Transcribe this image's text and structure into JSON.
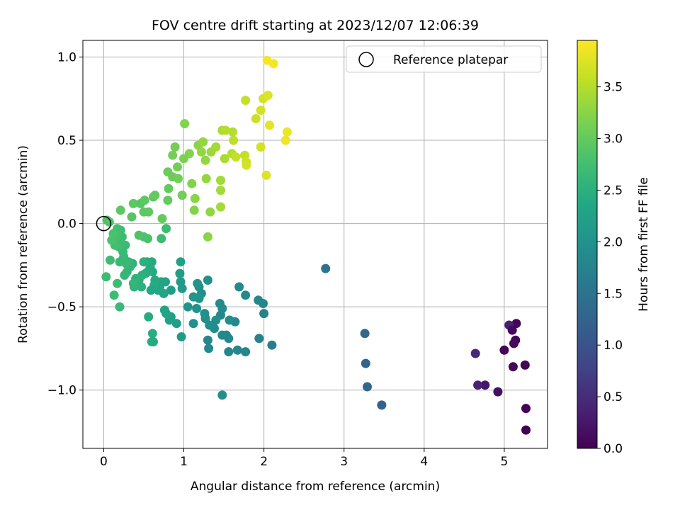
{
  "chart_data": {
    "type": "scatter",
    "title": "FOV centre drift starting at 2023/12/07 12:06:39",
    "xlabel": "Angular distance from reference (arcmin)",
    "ylabel": "Rotation from reference (arcmin)",
    "xlim": [
      -0.26,
      5.54
    ],
    "ylim": [
      -1.35,
      1.1
    ],
    "x_ticks": [
      0,
      1,
      2,
      3,
      4,
      5
    ],
    "y_ticks": [
      -1.0,
      -0.5,
      0.0,
      0.5,
      1.0
    ],
    "x_tick_labels": [
      "0",
      "1",
      "2",
      "3",
      "4",
      "5"
    ],
    "y_tick_labels": [
      "−1.0",
      "−0.5",
      "0.0",
      "0.5",
      "1.0"
    ],
    "grid": true,
    "legend": {
      "position": "top-right",
      "entries": [
        "Reference platepar"
      ]
    },
    "reference_point": {
      "x": 0.0,
      "y": 0.0
    },
    "colorbar": {
      "label": "Hours from first FF file",
      "colormap": "viridis",
      "range": [
        0.0,
        3.95
      ],
      "ticks": [
        0.0,
        0.5,
        1.0,
        1.5,
        2.0,
        2.5,
        3.0,
        3.5
      ],
      "tick_labels": [
        "0.0",
        "0.5",
        "1.0",
        "1.5",
        "2.0",
        "2.5",
        "3.0",
        "3.5"
      ]
    },
    "points": [
      [
        5.15,
        -0.6,
        0.03
      ],
      [
        5.06,
        -0.61,
        0.35
      ],
      [
        5.1,
        -0.64,
        0.07
      ],
      [
        5.14,
        -0.7,
        0.05
      ],
      [
        5.12,
        -0.72,
        0.1
      ],
      [
        5.0,
        -0.76,
        0.06
      ],
      [
        5.26,
        -0.85,
        0.04
      ],
      [
        5.11,
        -0.86,
        0.08
      ],
      [
        5.27,
        -1.11,
        0.02
      ],
      [
        5.27,
        -1.24,
        0.0
      ],
      [
        4.92,
        -1.01,
        0.15
      ],
      [
        4.76,
        -0.97,
        0.25
      ],
      [
        4.67,
        -0.97,
        0.4
      ],
      [
        4.64,
        -0.78,
        0.45
      ],
      [
        3.47,
        -1.09,
        1.2
      ],
      [
        3.29,
        -0.98,
        1.3
      ],
      [
        3.27,
        -0.84,
        1.25
      ],
      [
        3.26,
        -0.66,
        1.3
      ],
      [
        2.77,
        -0.27,
        1.5
      ],
      [
        2.1,
        -0.73,
        1.7
      ],
      [
        2.0,
        -0.54,
        1.75
      ],
      [
        1.99,
        -0.48,
        1.8
      ],
      [
        1.93,
        -0.46,
        1.8
      ],
      [
        1.94,
        -0.69,
        1.75
      ],
      [
        1.77,
        -0.77,
        1.8
      ],
      [
        1.77,
        -0.43,
        1.85
      ],
      [
        1.69,
        -0.38,
        1.85
      ],
      [
        1.67,
        -0.76,
        1.8
      ],
      [
        1.64,
        -0.59,
        1.85
      ],
      [
        1.57,
        -0.58,
        1.9
      ],
      [
        1.56,
        -0.69,
        1.85
      ],
      [
        1.56,
        -0.77,
        1.8
      ],
      [
        1.53,
        -0.67,
        1.8
      ],
      [
        1.48,
        -0.67,
        1.85
      ],
      [
        1.48,
        -0.51,
        1.9
      ],
      [
        1.46,
        -0.55,
        1.85
      ],
      [
        1.45,
        -0.48,
        1.9
      ],
      [
        1.4,
        -0.58,
        1.95
      ],
      [
        1.38,
        -0.63,
        1.9
      ],
      [
        1.32,
        -0.61,
        1.95
      ],
      [
        1.31,
        -0.75,
        1.85
      ],
      [
        1.3,
        -0.7,
        1.8
      ],
      [
        1.27,
        -0.57,
        1.95
      ],
      [
        1.26,
        -0.54,
        2.0
      ],
      [
        1.22,
        -0.42,
        2.0
      ],
      [
        1.19,
        -0.45,
        2.05
      ],
      [
        1.19,
        -0.38,
        2.0
      ],
      [
        1.17,
        -0.36,
        2.05
      ],
      [
        1.16,
        -0.51,
        2.0
      ],
      [
        1.12,
        -0.6,
        2.0
      ],
      [
        1.12,
        -0.44,
        2.05
      ],
      [
        1.05,
        -0.5,
        2.05
      ],
      [
        1.3,
        -0.34,
        2.0
      ],
      [
        1.48,
        -1.03,
        1.95
      ],
      [
        0.98,
        -0.39,
        2.15
      ],
      [
        0.96,
        -0.35,
        2.15
      ],
      [
        0.95,
        -0.3,
        2.2
      ],
      [
        0.96,
        -0.23,
        2.25
      ],
      [
        0.97,
        -0.68,
        2.15
      ],
      [
        0.91,
        -0.6,
        2.2
      ],
      [
        0.84,
        -0.4,
        2.2
      ],
      [
        0.84,
        -0.56,
        2.2
      ],
      [
        0.82,
        -0.58,
        2.25
      ],
      [
        0.78,
        -0.54,
        2.3
      ],
      [
        0.76,
        -0.52,
        2.3
      ],
      [
        0.77,
        -0.35,
        2.3
      ],
      [
        0.75,
        -0.42,
        2.3
      ],
      [
        0.72,
        -0.35,
        2.3
      ],
      [
        0.7,
        -0.38,
        2.35
      ],
      [
        0.68,
        -0.4,
        2.35
      ],
      [
        0.64,
        -0.34,
        2.4
      ],
      [
        0.63,
        -0.37,
        2.4
      ],
      [
        0.61,
        -0.29,
        2.4
      ],
      [
        0.59,
        -0.4,
        2.35
      ],
      [
        0.6,
        -0.23,
        2.4
      ],
      [
        0.58,
        -0.26,
        2.4
      ],
      [
        0.56,
        -0.56,
        2.4
      ],
      [
        0.55,
        -0.29,
        2.45
      ],
      [
        0.54,
        -0.23,
        2.45
      ],
      [
        0.52,
        -0.3,
        2.45
      ],
      [
        0.5,
        -0.23,
        2.5
      ],
      [
        0.48,
        -0.31,
        2.5
      ],
      [
        0.61,
        -0.66,
        2.45
      ],
      [
        0.6,
        -0.71,
        2.45
      ],
      [
        0.62,
        -0.71,
        2.4
      ],
      [
        0.47,
        -0.38,
        2.5
      ],
      [
        0.44,
        -0.34,
        2.5
      ],
      [
        0.4,
        -0.33,
        2.55
      ],
      [
        0.38,
        -0.38,
        2.55
      ],
      [
        0.37,
        -0.36,
        2.6
      ],
      [
        0.36,
        -0.24,
        2.55
      ],
      [
        0.33,
        -0.26,
        2.6
      ],
      [
        0.31,
        -0.23,
        2.6
      ],
      [
        0.29,
        -0.29,
        2.6
      ],
      [
        0.28,
        -0.24,
        2.65
      ],
      [
        0.27,
        -0.13,
        2.65
      ],
      [
        0.26,
        -0.31,
        2.6
      ],
      [
        0.25,
        -0.2,
        2.65
      ],
      [
        0.24,
        -0.17,
        2.65
      ],
      [
        0.23,
        -0.08,
        2.7
      ],
      [
        0.22,
        -0.12,
        2.7
      ],
      [
        0.21,
        -0.04,
        2.7
      ],
      [
        0.2,
        -0.23,
        2.65
      ],
      [
        0.19,
        -0.14,
        2.7
      ],
      [
        0.17,
        -0.03,
        2.75
      ],
      [
        0.16,
        -0.07,
        2.75
      ],
      [
        0.14,
        -0.13,
        2.75
      ],
      [
        0.13,
        -0.09,
        2.75
      ],
      [
        0.12,
        -0.06,
        2.8
      ],
      [
        0.1,
        -0.1,
        2.8
      ],
      [
        0.08,
        -0.22,
        2.7
      ],
      [
        0.07,
        0.01,
        2.85
      ],
      [
        0.04,
        0.02,
        2.85
      ],
      [
        0.03,
        -0.32,
        2.7
      ],
      [
        0.13,
        -0.43,
        2.7
      ],
      [
        0.17,
        -0.36,
        2.7
      ],
      [
        0.2,
        -0.5,
        2.65
      ],
      [
        0.55,
        -0.09,
        2.8
      ],
      [
        0.5,
        -0.08,
        2.8
      ],
      [
        0.72,
        -0.09,
        2.7
      ],
      [
        0.78,
        -0.03,
        2.7
      ],
      [
        0.21,
        0.08,
        2.95
      ],
      [
        0.35,
        0.04,
        2.9
      ],
      [
        0.44,
        -0.07,
        2.85
      ],
      [
        0.37,
        0.12,
        2.95
      ],
      [
        0.46,
        0.12,
        2.9
      ],
      [
        0.5,
        0.07,
        2.95
      ],
      [
        0.51,
        0.14,
        2.95
      ],
      [
        0.56,
        0.07,
        2.95
      ],
      [
        0.62,
        0.16,
        2.95
      ],
      [
        0.64,
        0.17,
        3.0
      ],
      [
        0.73,
        0.03,
        3.0
      ],
      [
        0.8,
        0.14,
        3.0
      ],
      [
        0.81,
        0.21,
        3.0
      ],
      [
        0.8,
        0.31,
        3.05
      ],
      [
        0.86,
        0.28,
        3.05
      ],
      [
        0.86,
        0.41,
        3.1
      ],
      [
        0.89,
        0.46,
        3.1
      ],
      [
        0.92,
        0.34,
        3.1
      ],
      [
        0.93,
        0.27,
        3.1
      ],
      [
        0.98,
        0.17,
        3.1
      ],
      [
        1.0,
        0.39,
        3.15
      ],
      [
        1.01,
        0.6,
        3.2
      ],
      [
        1.07,
        0.42,
        3.2
      ],
      [
        1.1,
        0.24,
        3.2
      ],
      [
        1.13,
        0.08,
        3.2
      ],
      [
        1.14,
        0.15,
        3.25
      ],
      [
        1.18,
        0.47,
        3.25
      ],
      [
        1.22,
        0.43,
        3.3
      ],
      [
        1.24,
        0.49,
        3.3
      ],
      [
        1.27,
        0.38,
        3.3
      ],
      [
        1.28,
        0.27,
        3.3
      ],
      [
        1.3,
        -0.08,
        3.25
      ],
      [
        1.33,
        0.07,
        3.3
      ],
      [
        1.34,
        0.43,
        3.35
      ],
      [
        1.4,
        0.46,
        3.4
      ],
      [
        1.46,
        0.26,
        3.4
      ],
      [
        1.46,
        0.2,
        3.4
      ],
      [
        1.46,
        0.1,
        3.4
      ],
      [
        1.48,
        0.56,
        3.45
      ],
      [
        1.51,
        0.39,
        3.45
      ],
      [
        1.52,
        0.56,
        3.5
      ],
      [
        1.6,
        0.42,
        3.5
      ],
      [
        1.61,
        0.55,
        3.5
      ],
      [
        1.62,
        0.5,
        3.55
      ],
      [
        1.65,
        0.4,
        3.6
      ],
      [
        1.76,
        0.41,
        3.6
      ],
      [
        1.78,
        0.37,
        3.65
      ],
      [
        1.77,
        0.74,
        3.6
      ],
      [
        1.78,
        0.35,
        3.7
      ],
      [
        1.9,
        0.63,
        3.65
      ],
      [
        1.96,
        0.46,
        3.7
      ],
      [
        1.96,
        0.68,
        3.7
      ],
      [
        1.99,
        0.75,
        3.7
      ],
      [
        2.03,
        0.29,
        3.75
      ],
      [
        2.04,
        0.98,
        3.9
      ],
      [
        2.05,
        0.77,
        3.75
      ],
      [
        2.07,
        0.59,
        3.8
      ],
      [
        2.12,
        0.96,
        3.9
      ],
      [
        2.27,
        0.5,
        3.85
      ],
      [
        2.29,
        0.55,
        3.85
      ]
    ]
  }
}
